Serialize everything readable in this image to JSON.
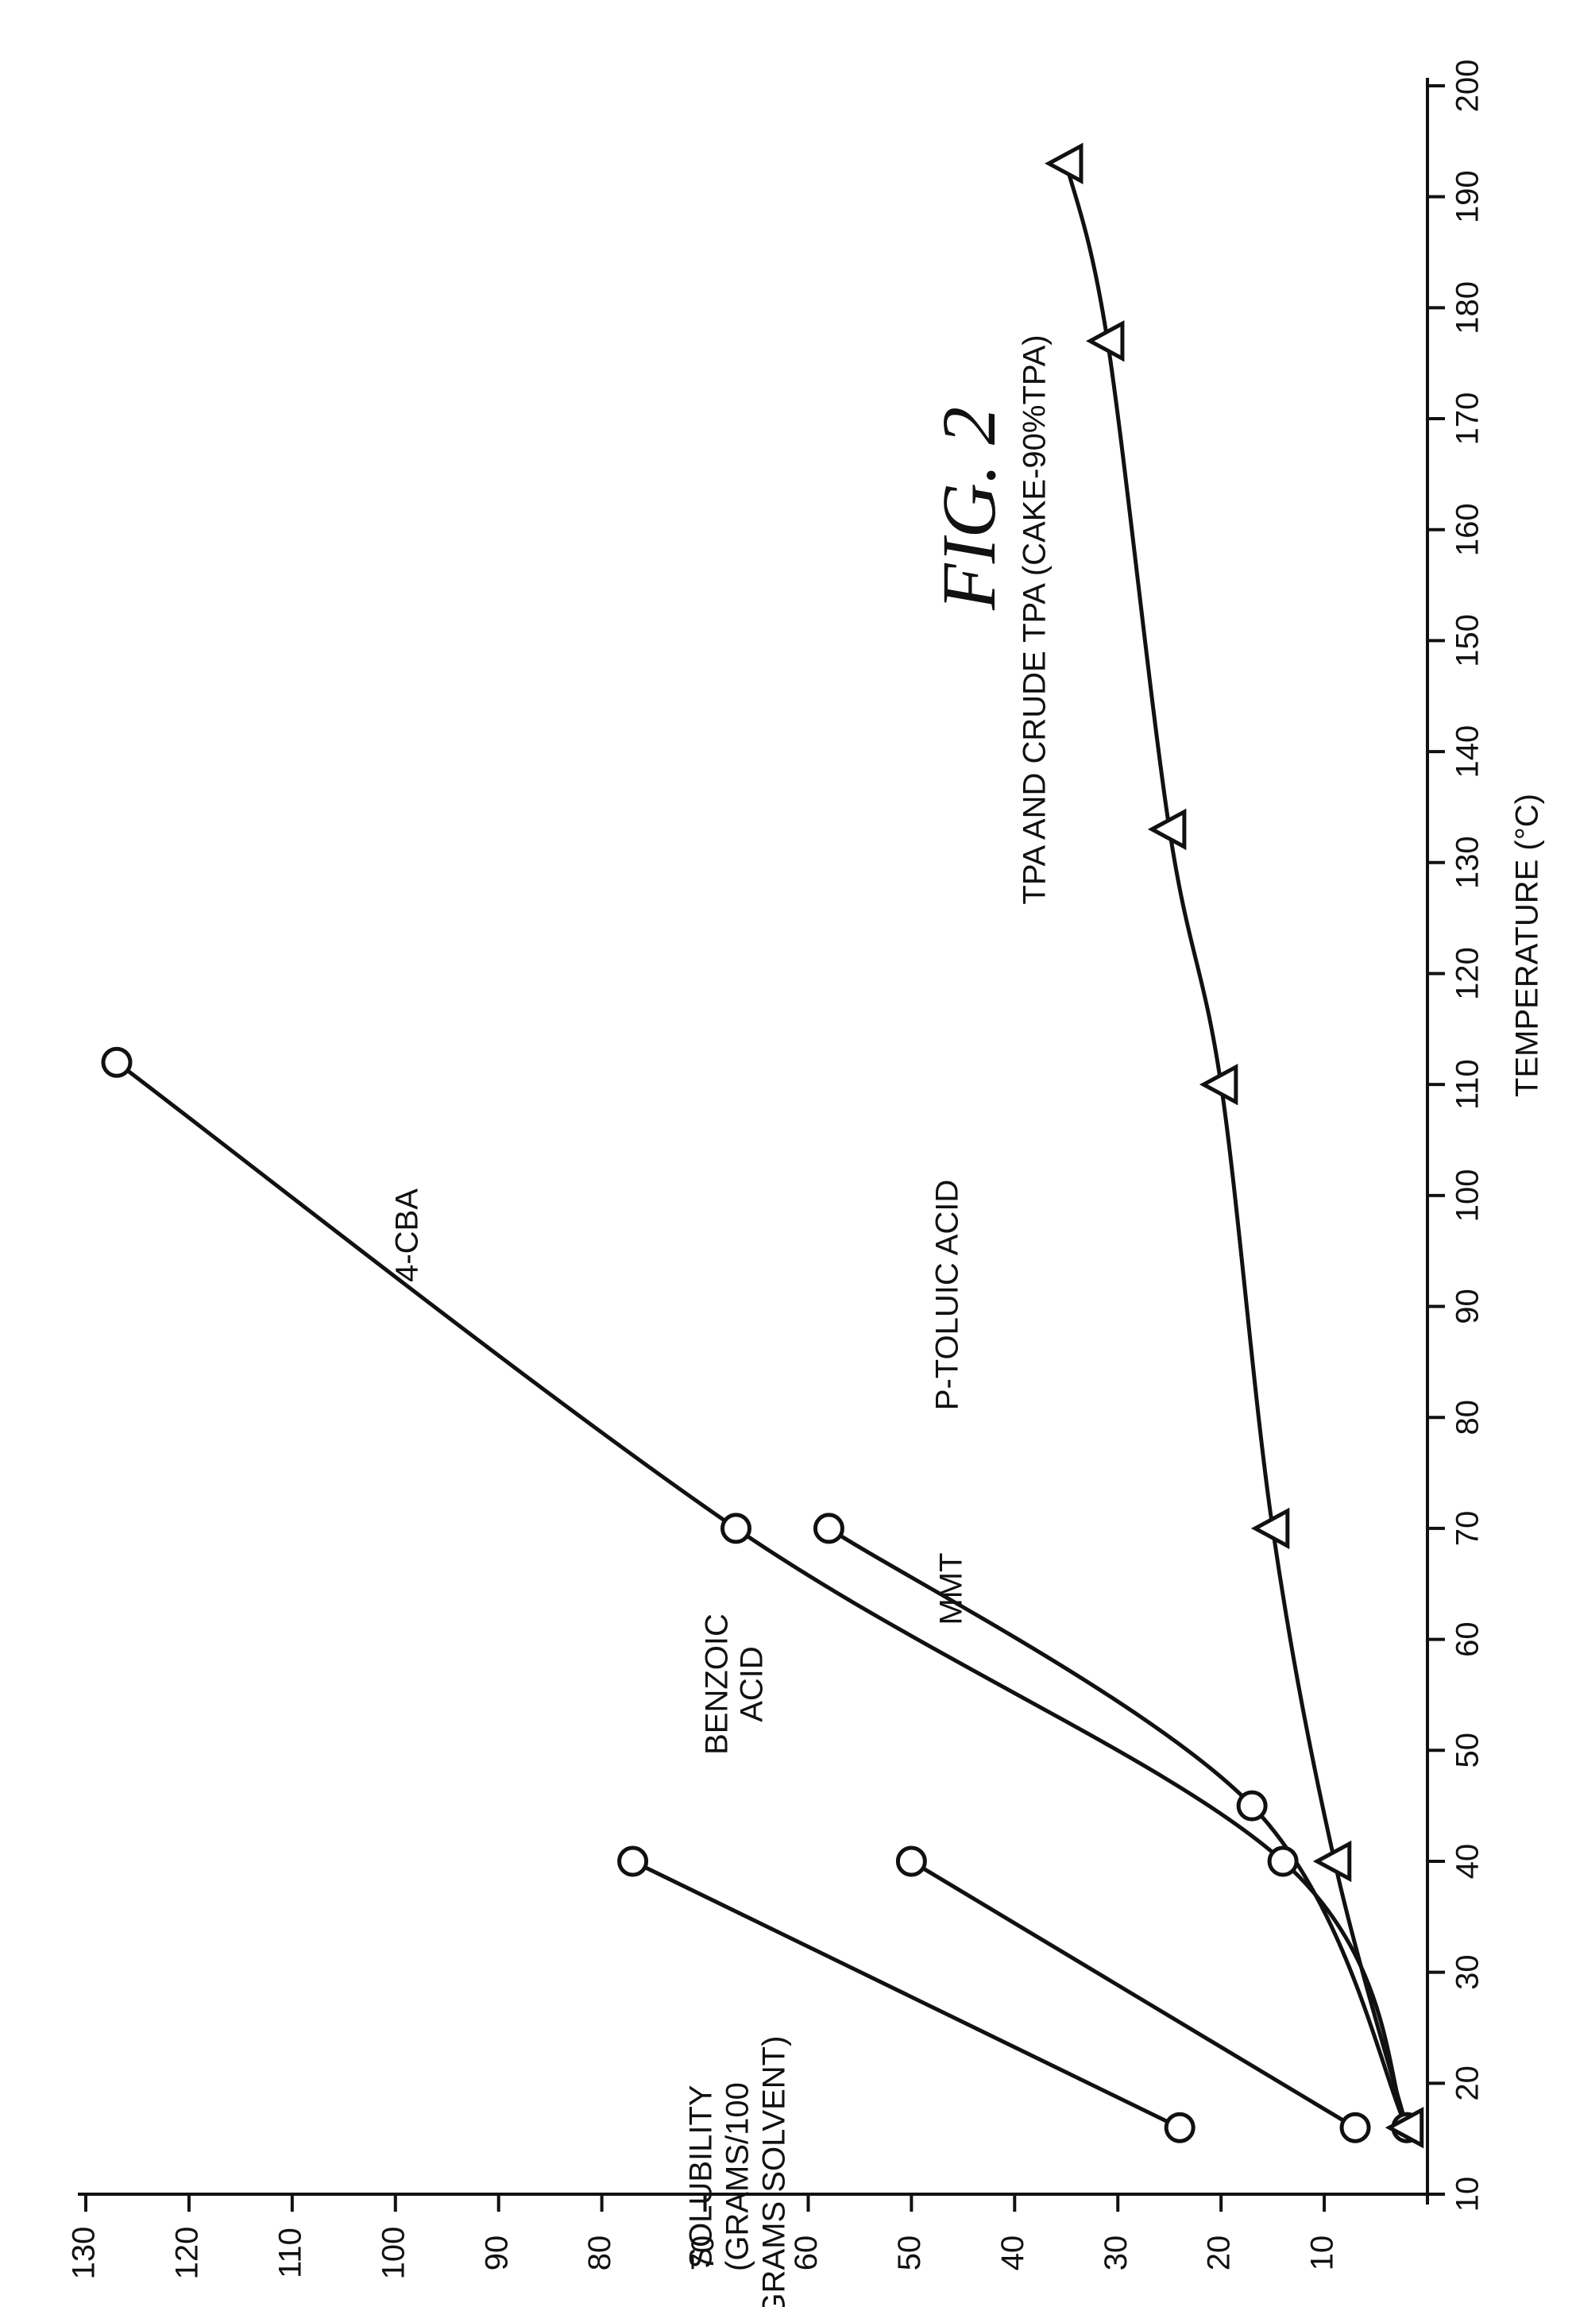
{
  "chart_data": {
    "type": "line",
    "title": "FIG. 2",
    "xlabel": "TEMPERATURE (°C)",
    "ylabel_lines": [
      "SOLUBILITY",
      "(GRAMS/100",
      "GRAMS SOLVENT)"
    ],
    "xlim": [
      10,
      200
    ],
    "ylim": [
      0,
      130
    ],
    "x_ticks": [
      10,
      20,
      30,
      40,
      50,
      60,
      70,
      80,
      90,
      100,
      110,
      120,
      130,
      140,
      150,
      160,
      170,
      180,
      190,
      200
    ],
    "y_ticks": [
      10,
      20,
      30,
      40,
      50,
      60,
      70,
      80,
      90,
      100,
      110,
      120,
      130
    ],
    "grid": false,
    "series": [
      {
        "name": "BENZOIC ACID",
        "label_lines": [
          "BENZOIC",
          "ACID"
        ],
        "marker": "circle",
        "points": [
          [
            16,
            24
          ],
          [
            40,
            77
          ]
        ]
      },
      {
        "name": "MMT",
        "label_lines": [
          "MMT"
        ],
        "marker": "circle",
        "points": [
          [
            16,
            7
          ],
          [
            40,
            50
          ]
        ]
      },
      {
        "name": "4-CBA",
        "label_lines": [
          "4-CBA"
        ],
        "marker": "circle",
        "points": [
          [
            16,
            2
          ],
          [
            40,
            14
          ],
          [
            70,
            67
          ],
          [
            112,
            127
          ]
        ]
      },
      {
        "name": "P-TOLUIC ACID",
        "label_lines": [
          "P-TOLUIC ACID"
        ],
        "marker": "circle",
        "points": [
          [
            16,
            2
          ],
          [
            45,
            17
          ],
          [
            70,
            58
          ]
        ]
      },
      {
        "name": "TPA AND CRUDE TPA (CAKE-90%TPA)",
        "label_lines": [
          "TPA AND CRUDE TPA (CAKE-90%TPA)"
        ],
        "marker": "triangle",
        "points": [
          [
            16,
            2
          ],
          [
            40,
            9
          ],
          [
            70,
            15
          ],
          [
            110,
            20
          ],
          [
            133,
            25
          ],
          [
            177,
            31
          ],
          [
            193,
            35
          ]
        ]
      }
    ]
  }
}
